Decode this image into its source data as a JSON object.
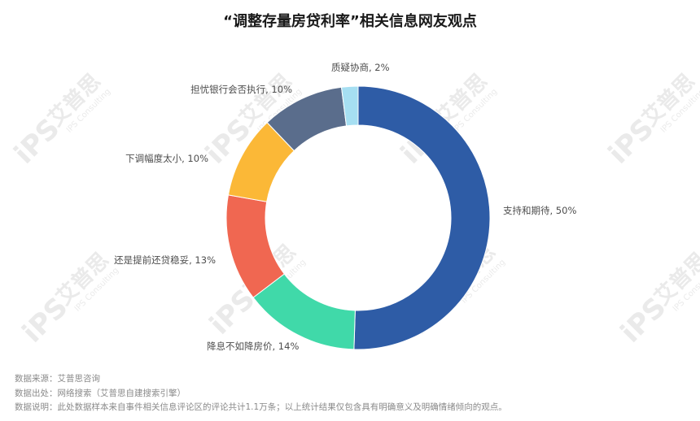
{
  "chart_data": {
    "type": "pie",
    "subtype": "donut",
    "title": "“调整存量房贷利率”相关信息网友观点",
    "slices": [
      {
        "label": "支持和期待",
        "value": 50,
        "display": "支持和期待, 50%",
        "color": "#2e5ca6"
      },
      {
        "label": "降息不如降房价",
        "value": 14,
        "display": "降息不如降房价, 14%",
        "color": "#40d9a9"
      },
      {
        "label": "还是提前还贷稳妥",
        "value": 13,
        "display": "还是提前还贷稳妥, 13%",
        "color": "#f06751"
      },
      {
        "label": "下调幅度太小",
        "value": 10,
        "display": "下调幅度太小, 10%",
        "color": "#fbb837"
      },
      {
        "label": "担忧银行会否执行",
        "value": 10,
        "display": "担忧银行会否执行, 10%",
        "color": "#5a6d8c"
      },
      {
        "label": "质疑协商",
        "value": 2,
        "display": "质疑协商, 2%",
        "color": "#a6dff2"
      }
    ]
  },
  "footer": {
    "source": "数据来源：艾普思咨询",
    "origin": "数据出处：网络搜索（艾普思自建搜索引擎）",
    "note": "数据说明：此处数据样本来自事件相关信息评论区的评论共计1.1万条；以上统计结果仅包含具有明确意义及明确情绪倾向的观点。"
  },
  "watermark": {
    "brand": "艾普思",
    "logo": "iPS",
    "sub": "IPS Consulting"
  }
}
